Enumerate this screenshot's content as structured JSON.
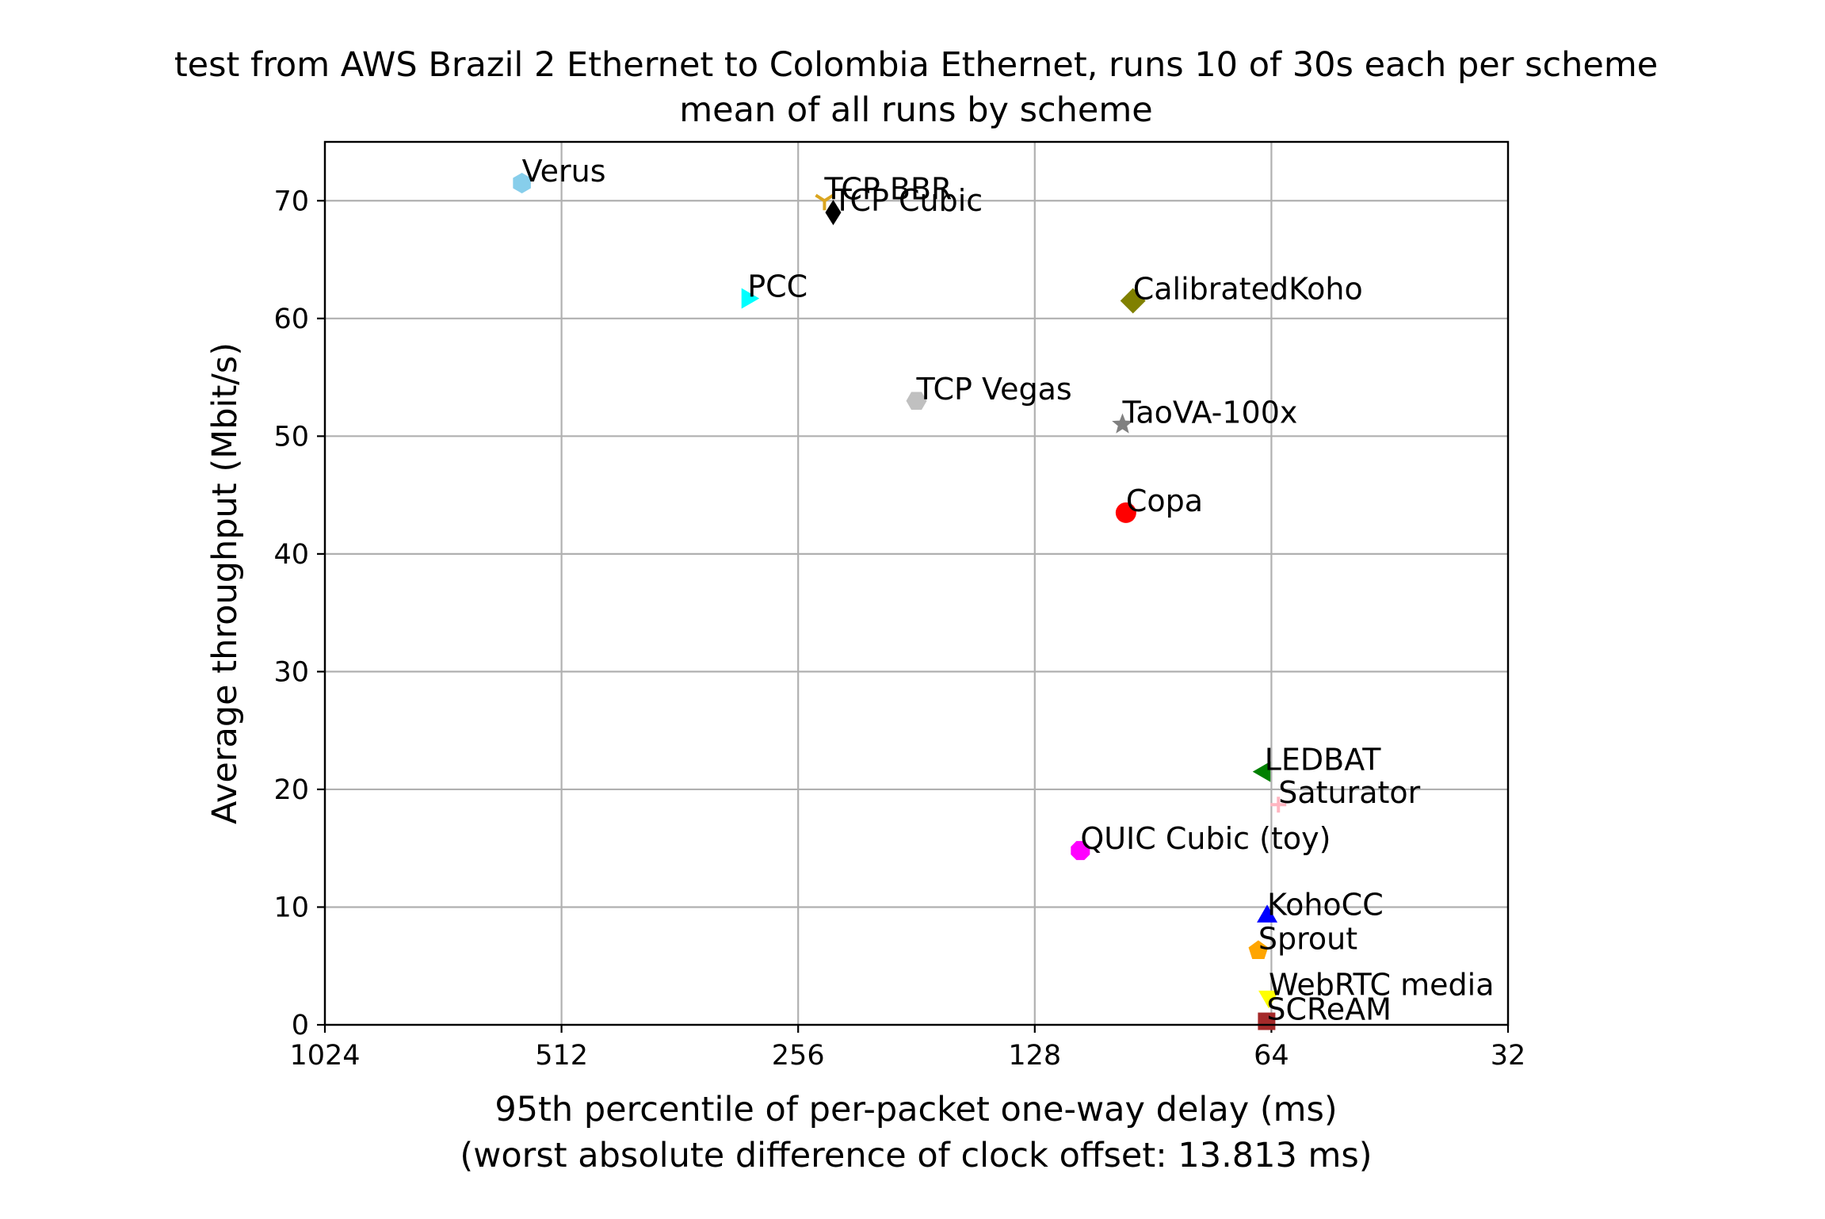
{
  "chart_data": {
    "type": "scatter",
    "title": "test from AWS Brazil 2 Ethernet to Colombia Ethernet, runs 10 of 30s each per scheme",
    "subtitle": "mean of all runs by scheme",
    "xlabel": "95th percentile of per-packet one-way delay (ms)",
    "xlabel2": "(worst absolute difference of clock offset: 13.813 ms)",
    "ylabel": "Average throughput (Mbit/s)",
    "x_scale": "log2",
    "x_inverted": true,
    "xlim": [
      1024,
      32
    ],
    "ylim": [
      0,
      75
    ],
    "grid": true,
    "x_ticks": [
      1024,
      512,
      256,
      128,
      64,
      32
    ],
    "x_tick_labels": [
      "1024",
      "512",
      "256",
      "128",
      "64",
      "32"
    ],
    "y_ticks": [
      0,
      10,
      20,
      30,
      40,
      50,
      60,
      70
    ],
    "y_tick_labels": [
      "0",
      "10",
      "20",
      "30",
      "40",
      "50",
      "60",
      "70"
    ],
    "points": [
      {
        "name": "Verus",
        "x": 575,
        "y": 71.5,
        "marker": "hexagon",
        "color": "#87ceeb"
      },
      {
        "name": "TCP BBR",
        "x": 237,
        "y": 70.0,
        "marker": "tri_down",
        "color": "#daa520"
      },
      {
        "name": "TCP Cubic",
        "x": 231,
        "y": 69.0,
        "marker": "thin_diamond",
        "color": "#000000"
      },
      {
        "name": "PCC",
        "x": 297,
        "y": 61.7,
        "marker": "triangle_right",
        "color": "#00ffff"
      },
      {
        "name": "CalibratedKoho",
        "x": 96,
        "y": 61.5,
        "marker": "diamond",
        "color": "#808000"
      },
      {
        "name": "TCP Vegas",
        "x": 181,
        "y": 53.0,
        "marker": "hexagon2",
        "color": "#c0c0c0"
      },
      {
        "name": "TaoVA-100x",
        "x": 99,
        "y": 51.0,
        "marker": "star",
        "color": "#808080"
      },
      {
        "name": "Copa",
        "x": 98,
        "y": 43.5,
        "marker": "circle",
        "color": "#ff0000"
      },
      {
        "name": "LEDBAT",
        "x": 65.3,
        "y": 21.5,
        "marker": "triangle_left",
        "color": "#008000"
      },
      {
        "name": "Saturator",
        "x": 62.7,
        "y": 18.7,
        "marker": "plus",
        "color": "#ffb6c1"
      },
      {
        "name": "QUIC Cubic (toy)",
        "x": 112,
        "y": 14.8,
        "marker": "octagon",
        "color": "#ff00ff"
      },
      {
        "name": "KohoCC",
        "x": 64.8,
        "y": 9.2,
        "marker": "triangle_up",
        "color": "#0000ff"
      },
      {
        "name": "Sprout",
        "x": 66.5,
        "y": 6.3,
        "marker": "pentagon",
        "color": "#ffa500"
      },
      {
        "name": "WebRTC media",
        "x": 64.5,
        "y": 2.4,
        "marker": "triangle_down",
        "color": "#ffff00"
      },
      {
        "name": "SCReAM",
        "x": 64.9,
        "y": 0.3,
        "marker": "square",
        "color": "#a52a2a"
      }
    ]
  }
}
